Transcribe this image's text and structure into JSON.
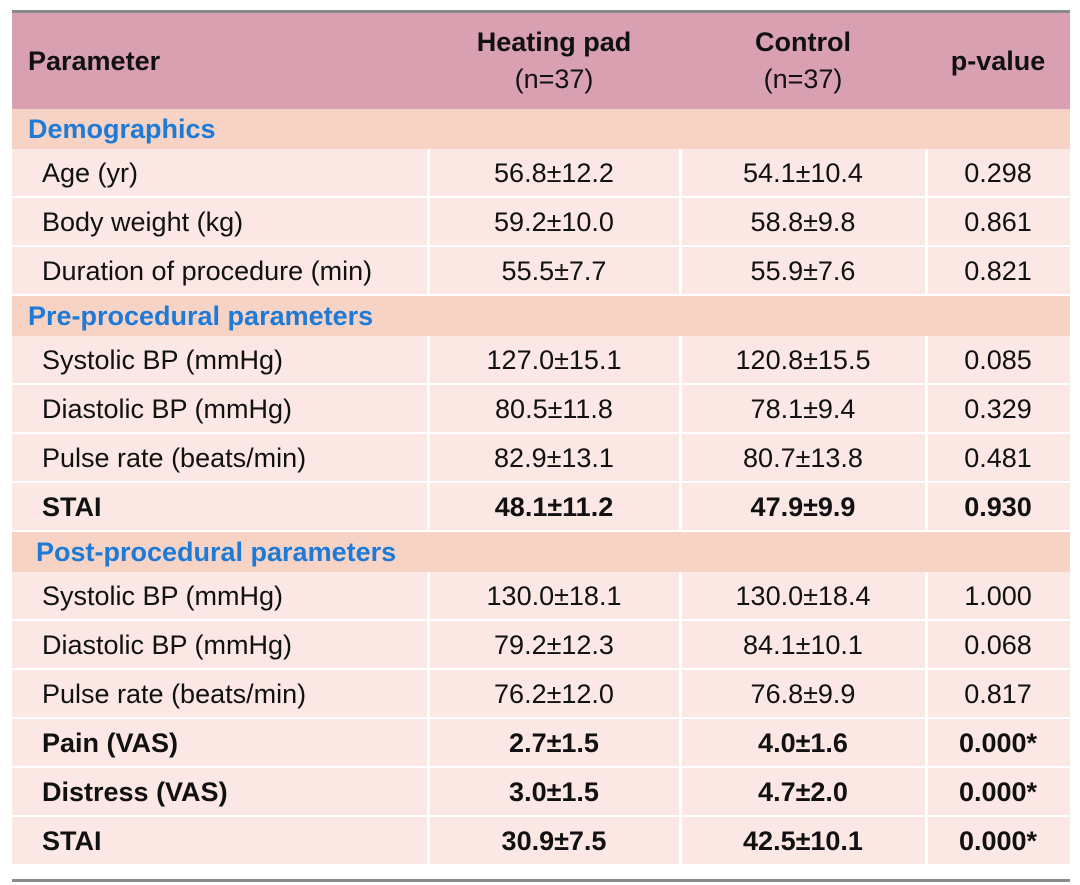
{
  "chart_data": {
    "type": "table",
    "columns": [
      "Parameter",
      "Heating pad",
      "(n=37)",
      "Control",
      "(n=37)",
      "p-value"
    ],
    "header": {
      "parameter": "Parameter",
      "heating_pad": "Heating pad",
      "heating_n": "(n=37)",
      "control": "Control",
      "control_n": "(n=37)",
      "p_value": "p-value"
    },
    "sections": [
      {
        "title": "Demographics",
        "rows": [
          {
            "parameter": "Age (yr)",
            "heating_pad": "56.8±12.2",
            "control": "54.1±10.4",
            "p_value": "0.298",
            "bold": false
          },
          {
            "parameter": "Body weight (kg)",
            "heating_pad": "59.2±10.0",
            "control": "58.8±9.8",
            "p_value": "0.861",
            "bold": false
          },
          {
            "parameter": "Duration of procedure (min)",
            "heating_pad": "55.5±7.7",
            "control": "55.9±7.6",
            "p_value": "0.821",
            "bold": false
          }
        ]
      },
      {
        "title": "Pre-procedural parameters",
        "rows": [
          {
            "parameter": "Systolic BP (mmHg)",
            "heating_pad": "127.0±15.1",
            "control": "120.8±15.5",
            "p_value": "0.085",
            "bold": false
          },
          {
            "parameter": "Diastolic BP (mmHg)",
            "heating_pad": "80.5±11.8",
            "control": "78.1±9.4",
            "p_value": "0.329",
            "bold": false
          },
          {
            "parameter": "Pulse rate (beats/min)",
            "heating_pad": "82.9±13.1",
            "control": "80.7±13.8",
            "p_value": "0.481",
            "bold": false
          },
          {
            "parameter": "STAI",
            "heating_pad": "48.1±11.2",
            "control": "47.9±9.9",
            "p_value": "0.930",
            "bold": true
          }
        ]
      },
      {
        "title": "Post-procedural parameters",
        "rows": [
          {
            "parameter": "Systolic BP (mmHg)",
            "heating_pad": "130.0±18.1",
            "control": "130.0±18.4",
            "p_value": "1.000",
            "bold": false
          },
          {
            "parameter": "Diastolic BP (mmHg)",
            "heating_pad": "79.2±12.3",
            "control": "84.1±10.1",
            "p_value": "0.068",
            "bold": false
          },
          {
            "parameter": "Pulse rate (beats/min)",
            "heating_pad": "76.2±12.0",
            "control": "76.8±9.9",
            "p_value": "0.817",
            "bold": false
          },
          {
            "parameter": "Pain (VAS)",
            "heating_pad": "2.7±1.5",
            "control": "4.0±1.6",
            "p_value": "0.000*",
            "bold": true
          },
          {
            "parameter": "Distress (VAS)",
            "heating_pad": "3.0±1.5",
            "control": "4.7±2.0",
            "p_value": "0.000*",
            "bold": true
          },
          {
            "parameter": "STAI",
            "heating_pad": "30.9±7.5",
            "control": "42.5±10.1",
            "p_value": "0.000*",
            "bold": true
          }
        ]
      }
    ],
    "colors": {
      "header_bg": "#d9a0b2",
      "section_bg": "#f7d3c5",
      "section_text": "#1d7ad6",
      "row_bg": "#fbe7e3"
    }
  }
}
